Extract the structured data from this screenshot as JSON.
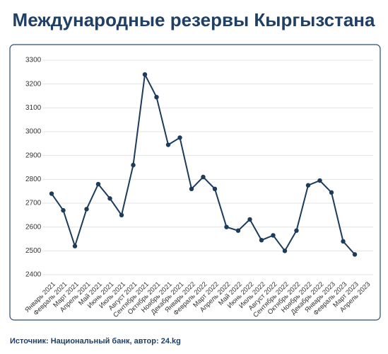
{
  "chart_data": {
    "type": "line",
    "title": "Международные резервы Кыргызстана",
    "source": "Источник: Национальный банк, автор: 24.kg",
    "categories": [
      "Январь 2021",
      "Февраль 2021",
      "Март 2021",
      "Апрель 2021",
      "Май 2021",
      "Июнь 2021",
      "Июль 2021",
      "Август 2021",
      "Сентябрь 2021",
      "Октябрь 2021",
      "Ноябрь 2021",
      "Декабрь 2021",
      "Январь 2022",
      "Февраль 2022",
      "Март 2022",
      "Апрель 2022",
      "Май 2022",
      "Июнь 2022",
      "Июль 2022",
      "Август 2022",
      "Сентябрь 2022",
      "Октябрь 2022",
      "Ноябрь 2022",
      "Декабрь 2022",
      "Январь 2023",
      "Февраль 2023",
      "Март 2023",
      "Апрель 2023"
    ],
    "series": [
      {
        "name": "Международные резервы",
        "color": "#1d3b5a",
        "values": [
          2740,
          2670,
          2520,
          2675,
          2780,
          2720,
          2650,
          2860,
          3240,
          3145,
          2945,
          2975,
          2760,
          2810,
          2760,
          2600,
          2585,
          2632,
          2545,
          2565,
          2500,
          2585,
          2775,
          2795,
          2745,
          2540,
          2485,
          null
        ]
      }
    ],
    "ylim": [
      2400,
      3300
    ],
    "yticks": [
      2400,
      2500,
      2600,
      2700,
      2800,
      2900,
      3000,
      3100,
      3200,
      3300
    ],
    "grid": true
  }
}
